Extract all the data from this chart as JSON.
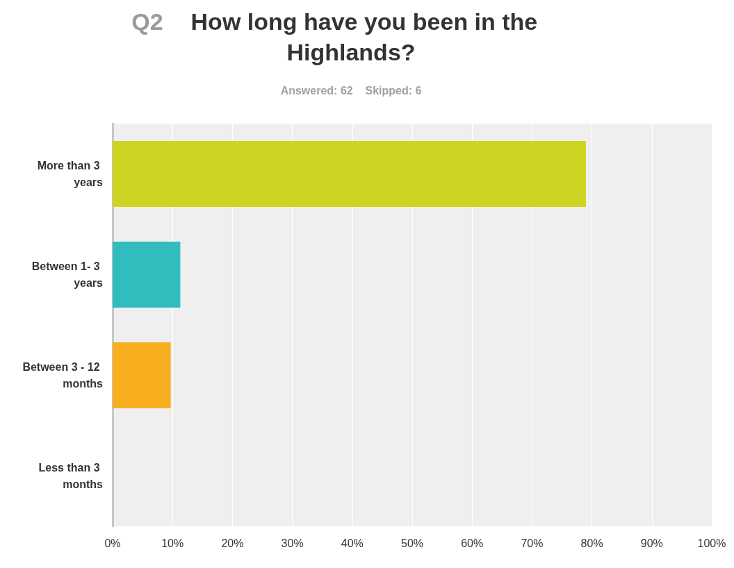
{
  "chart_data": {
    "type": "bar",
    "orientation": "horizontal",
    "title": "Q2 How long have you been in the Highlands?",
    "subtitle": "Answered: 62    Skipped: 6",
    "categories": [
      "More than 3 years",
      "Between 1- 3 years",
      "Between 3 - 12 months",
      "Less than 3 months"
    ],
    "values": [
      79,
      11.3,
      9.7,
      0
    ],
    "colors": [
      "#cdd422",
      "#31bdbe",
      "#f7ae1f",
      "#e46c5a"
    ],
    "xlim": [
      0,
      100
    ],
    "xticks": [
      {
        "value": 0,
        "label": "0%"
      },
      {
        "value": 10,
        "label": "10%"
      },
      {
        "value": 20,
        "label": "20%"
      },
      {
        "value": 30,
        "label": "30%"
      },
      {
        "value": 40,
        "label": "40%"
      },
      {
        "value": 50,
        "label": "50%"
      },
      {
        "value": 60,
        "label": "60%"
      },
      {
        "value": 70,
        "label": "70%"
      },
      {
        "value": 80,
        "label": "80%"
      },
      {
        "value": 90,
        "label": "90%"
      },
      {
        "value": 100,
        "label": "100%"
      }
    ],
    "grid": "x"
  }
}
